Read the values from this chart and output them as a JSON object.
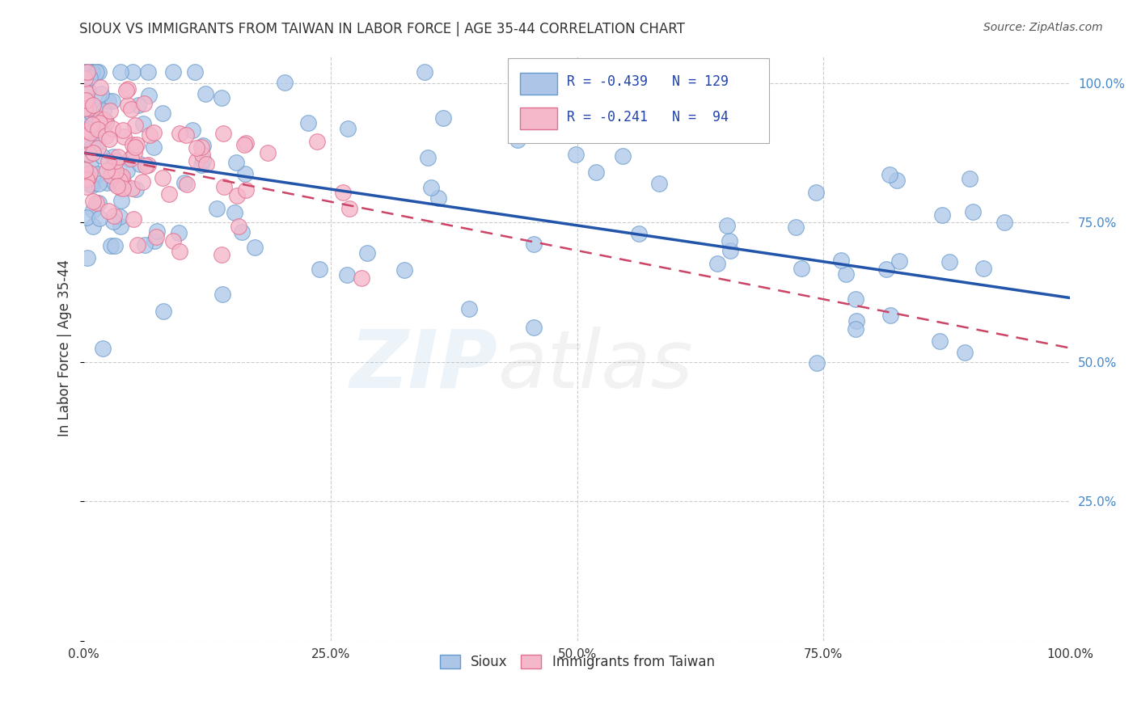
{
  "title": "SIOUX VS IMMIGRANTS FROM TAIWAN IN LABOR FORCE | AGE 35-44 CORRELATION CHART",
  "source_text": "Source: ZipAtlas.com",
  "ylabel": "In Labor Force | Age 35-44",
  "xlim": [
    0.0,
    1.0
  ],
  "ylim": [
    0.0,
    1.05
  ],
  "x_ticks": [
    0.0,
    0.25,
    0.5,
    0.75,
    1.0
  ],
  "y_ticks": [
    0.0,
    0.25,
    0.5,
    0.75,
    1.0
  ],
  "x_tick_labels": [
    "0.0%",
    "25.0%",
    "50.0%",
    "75.0%",
    "100.0%"
  ],
  "y_tick_labels_right": [
    "",
    "25.0%",
    "50.0%",
    "75.0%",
    "100.0%"
  ],
  "sioux_color": "#adc6e8",
  "taiwan_color": "#f5b8cb",
  "sioux_edge_color": "#6699cc",
  "taiwan_edge_color": "#e07090",
  "trend_sioux_color": "#2255aa",
  "trend_taiwan_color": "#cc4466",
  "R_sioux": -0.439,
  "N_sioux": 129,
  "R_taiwan": -0.241,
  "N_taiwan": 94,
  "legend_label_sioux": "Sioux",
  "legend_label_taiwan": "Immigrants from Taiwan",
  "background_color": "#ffffff",
  "grid_color": "#cccccc",
  "title_color": "#333333",
  "axis_label_color": "#333333",
  "tick_color_right": "#4488cc",
  "tick_color_bottom": "#333333",
  "sioux_trend_start_y": 0.875,
  "sioux_trend_end_y": 0.615,
  "taiwan_trend_start_y": 0.875,
  "taiwan_trend_end_y": 0.525
}
